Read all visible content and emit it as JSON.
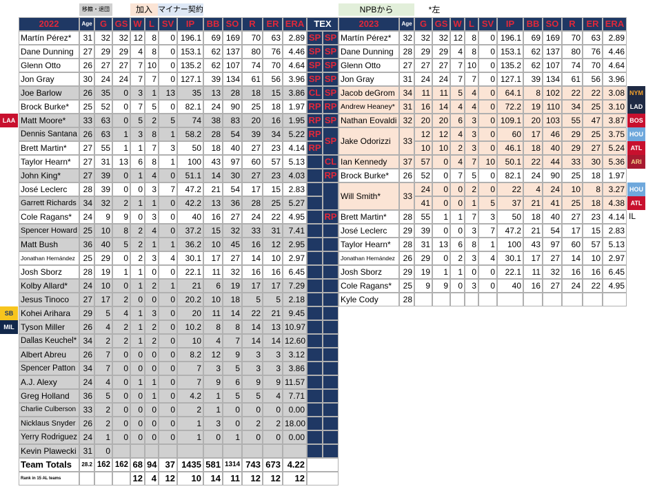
{
  "legend": {
    "departed": "移籍・退団",
    "added": "加入",
    "minor": "マイナー契約",
    "npb": "NPBから",
    "lefty": "*左"
  },
  "tex_label": "TEX",
  "left_table": {
    "title": "2022",
    "columns": [
      "Age",
      "G",
      "GS",
      "W",
      "L",
      "SV",
      "IP",
      "BB",
      "SO",
      "R",
      "ER",
      "ERA"
    ],
    "rows": [
      {
        "name": "Martín Pérez*",
        "role": "SP",
        "stats": [
          "31",
          "32",
          "32",
          "12",
          "8",
          "0",
          "196.1",
          "69",
          "169",
          "70",
          "63",
          "2.89"
        ]
      },
      {
        "name": "Dane Dunning",
        "role": "SP",
        "stats": [
          "27",
          "29",
          "29",
          "4",
          "8",
          "0",
          "153.1",
          "62",
          "137",
          "80",
          "76",
          "4.46"
        ]
      },
      {
        "name": "Glenn Otto",
        "role": "SP",
        "stats": [
          "26",
          "27",
          "27",
          "7",
          "10",
          "0",
          "135.2",
          "62",
          "107",
          "74",
          "70",
          "4.64"
        ]
      },
      {
        "name": "Jon Gray",
        "role": "SP",
        "stats": [
          "30",
          "24",
          "24",
          "7",
          "7",
          "0",
          "127.1",
          "39",
          "134",
          "61",
          "56",
          "3.96"
        ]
      },
      {
        "name": "Joe Barlow",
        "role": "CL",
        "status": "departed",
        "stats": [
          "26",
          "35",
          "0",
          "3",
          "1",
          "13",
          "35",
          "13",
          "28",
          "18",
          "15",
          "3.86"
        ]
      },
      {
        "name": "Brock Burke*",
        "role": "RP",
        "stats": [
          "25",
          "52",
          "0",
          "7",
          "5",
          "0",
          "82.1",
          "24",
          "90",
          "25",
          "18",
          "1.97"
        ]
      },
      {
        "name": "Matt Moore*",
        "role": "RP",
        "status": "departed",
        "team": "LAA",
        "stats": [
          "33",
          "63",
          "0",
          "5",
          "2",
          "5",
          "74",
          "38",
          "83",
          "20",
          "16",
          "1.95"
        ]
      },
      {
        "name": "Dennis Santana",
        "role": "RP",
        "status": "departed",
        "stats": [
          "26",
          "63",
          "1",
          "3",
          "8",
          "1",
          "58.2",
          "28",
          "54",
          "39",
          "34",
          "5.22"
        ]
      },
      {
        "name": "Brett Martin*",
        "role": "RP",
        "stats": [
          "27",
          "55",
          "1",
          "1",
          "7",
          "3",
          "50",
          "18",
          "40",
          "27",
          "23",
          "4.14"
        ]
      },
      {
        "name": "Taylor Hearn*",
        "stats": [
          "27",
          "31",
          "13",
          "6",
          "8",
          "1",
          "100",
          "43",
          "97",
          "60",
          "57",
          "5.13"
        ]
      },
      {
        "name": "John King*",
        "status": "departed",
        "stats": [
          "27",
          "39",
          "0",
          "1",
          "4",
          "0",
          "51.1",
          "14",
          "30",
          "27",
          "23",
          "4.03"
        ]
      },
      {
        "name": "José Leclerc",
        "stats": [
          "28",
          "39",
          "0",
          "0",
          "3",
          "7",
          "47.2",
          "21",
          "54",
          "17",
          "15",
          "2.83"
        ]
      },
      {
        "name": "Garrett Richards",
        "status": "departed",
        "stats": [
          "34",
          "32",
          "2",
          "1",
          "1",
          "0",
          "42.2",
          "13",
          "36",
          "28",
          "25",
          "5.27"
        ]
      },
      {
        "name": "Cole Ragans*",
        "stats": [
          "24",
          "9",
          "9",
          "0",
          "3",
          "0",
          "40",
          "16",
          "27",
          "24",
          "22",
          "4.95"
        ]
      },
      {
        "name": "Spencer Howard",
        "status": "departed",
        "stats": [
          "25",
          "10",
          "8",
          "2",
          "4",
          "0",
          "37.2",
          "15",
          "32",
          "33",
          "31",
          "7.41"
        ]
      },
      {
        "name": "Matt Bush",
        "status": "departed",
        "stats": [
          "36",
          "40",
          "5",
          "2",
          "1",
          "1",
          "36.2",
          "10",
          "45",
          "16",
          "12",
          "2.95"
        ]
      },
      {
        "name": "Jonathan Hernández",
        "stats": [
          "25",
          "29",
          "0",
          "2",
          "3",
          "4",
          "30.1",
          "17",
          "27",
          "14",
          "10",
          "2.97"
        ]
      },
      {
        "name": "Josh Sborz",
        "stats": [
          "28",
          "19",
          "1",
          "1",
          "0",
          "0",
          "22.1",
          "11",
          "32",
          "16",
          "16",
          "6.45"
        ]
      },
      {
        "name": "Kolby Allard*",
        "status": "departed",
        "stats": [
          "24",
          "10",
          "0",
          "1",
          "2",
          "1",
          "21",
          "6",
          "19",
          "17",
          "17",
          "7.29"
        ]
      },
      {
        "name": "Jesus Tinoco",
        "status": "departed",
        "stats": [
          "27",
          "17",
          "2",
          "0",
          "0",
          "0",
          "20.2",
          "10",
          "18",
          "5",
          "5",
          "2.18"
        ]
      },
      {
        "name": "Kohei Arihara",
        "status": "departed",
        "team": "SB",
        "stats": [
          "29",
          "5",
          "4",
          "1",
          "3",
          "0",
          "20",
          "11",
          "14",
          "22",
          "21",
          "9.45"
        ]
      },
      {
        "name": "Tyson Miller",
        "status": "departed",
        "team": "MIL",
        "stats": [
          "26",
          "4",
          "2",
          "1",
          "2",
          "0",
          "10.2",
          "8",
          "8",
          "14",
          "13",
          "10.97"
        ]
      },
      {
        "name": "Dallas Keuchel*",
        "status": "departed",
        "stats": [
          "34",
          "2",
          "2",
          "1",
          "2",
          "0",
          "10",
          "4",
          "7",
          "14",
          "14",
          "12.60"
        ]
      },
      {
        "name": "Albert Abreu",
        "status": "departed",
        "stats": [
          "26",
          "7",
          "0",
          "0",
          "0",
          "0",
          "8.2",
          "12",
          "9",
          "3",
          "3",
          "3.12"
        ]
      },
      {
        "name": "Spencer Patton",
        "status": "departed",
        "stats": [
          "34",
          "7",
          "0",
          "0",
          "0",
          "0",
          "7",
          "3",
          "5",
          "3",
          "3",
          "3.86"
        ]
      },
      {
        "name": "A.J. Alexy",
        "status": "departed",
        "stats": [
          "24",
          "4",
          "0",
          "1",
          "1",
          "0",
          "7",
          "9",
          "6",
          "9",
          "9",
          "11.57"
        ]
      },
      {
        "name": "Greg Holland",
        "status": "departed",
        "stats": [
          "36",
          "5",
          "0",
          "0",
          "1",
          "0",
          "4.2",
          "1",
          "5",
          "5",
          "4",
          "7.71"
        ]
      },
      {
        "name": "Charlie Culberson",
        "status": "departed",
        "stats": [
          "33",
          "2",
          "0",
          "0",
          "0",
          "0",
          "2",
          "1",
          "0",
          "0",
          "0",
          "0.00"
        ]
      },
      {
        "name": "Nicklaus Snyder",
        "status": "departed",
        "stats": [
          "26",
          "2",
          "0",
          "0",
          "0",
          "0",
          "1",
          "3",
          "0",
          "2",
          "2",
          "18.00"
        ]
      },
      {
        "name": "Yerry Rodriguez",
        "status": "departed",
        "stats": [
          "24",
          "1",
          "0",
          "0",
          "0",
          "0",
          "1",
          "0",
          "1",
          "0",
          "0",
          "0.00"
        ]
      },
      {
        "name": "Kevin Plawecki",
        "status": "departed",
        "stats": [
          "31",
          "0"
        ]
      }
    ],
    "totals": {
      "label": "Team Totals",
      "stats": [
        "28.2",
        "162",
        "162",
        "68",
        "94",
        "37",
        "1435",
        "581",
        "1314",
        "743",
        "673",
        "4.22"
      ]
    },
    "rank": {
      "label": "Rank in 15 AL teams",
      "stats": [
        "12",
        "4",
        "12",
        "10",
        "14",
        "11",
        "12",
        "12",
        "12"
      ]
    }
  },
  "right_table": {
    "title": "2023",
    "columns": [
      "Age",
      "G",
      "GS",
      "W",
      "L",
      "SV",
      "IP",
      "BB",
      "SO",
      "R",
      "ER",
      "ERA"
    ],
    "rows": [
      {
        "name": "Martín Pérez*",
        "role": "SP",
        "age": "32",
        "splits": [
          {
            "stats": [
              "32",
              "32",
              "12",
              "8",
              "0",
              "196.1",
              "69",
              "169",
              "70",
              "63",
              "2.89"
            ]
          }
        ]
      },
      {
        "name": "Dane Dunning",
        "role": "SP",
        "age": "28",
        "splits": [
          {
            "stats": [
              "29",
              "29",
              "4",
              "8",
              "0",
              "153.1",
              "62",
              "137",
              "80",
              "76",
              "4.46"
            ]
          }
        ]
      },
      {
        "name": "Glenn Otto",
        "role": "SP",
        "age": "27",
        "splits": [
          {
            "stats": [
              "27",
              "27",
              "7",
              "10",
              "0",
              "135.2",
              "62",
              "107",
              "74",
              "70",
              "4.64"
            ]
          }
        ]
      },
      {
        "name": "Jon Gray",
        "role": "SP",
        "age": "31",
        "splits": [
          {
            "stats": [
              "24",
              "24",
              "7",
              "7",
              "0",
              "127.1",
              "39",
              "134",
              "61",
              "56",
              "3.96"
            ]
          }
        ]
      },
      {
        "name": "Jacob deGrom",
        "role": "SP",
        "status": "added",
        "age": "34",
        "splits": [
          {
            "team": "NYM",
            "stats": [
              "11",
              "11",
              "5",
              "4",
              "0",
              "64.1",
              "8",
              "102",
              "22",
              "22",
              "3.08"
            ]
          }
        ]
      },
      {
        "name": "Andrew Heaney*",
        "role": "RP",
        "status": "added",
        "age": "31",
        "splits": [
          {
            "team": "LAD",
            "stats": [
              "16",
              "14",
              "4",
              "4",
              "0",
              "72.2",
              "19",
              "110",
              "34",
              "25",
              "3.10"
            ]
          }
        ]
      },
      {
        "name": "Nathan Eovaldi",
        "role": "SP",
        "status": "added",
        "age": "32",
        "splits": [
          {
            "team": "BOS",
            "stats": [
              "20",
              "20",
              "6",
              "3",
              "0",
              "109.1",
              "20",
              "103",
              "55",
              "47",
              "3.87"
            ]
          }
        ]
      },
      {
        "name": "Jake Odorizzi",
        "role": "SP",
        "status": "added",
        "age": "33",
        "splits": [
          {
            "team": "HOU",
            "stats": [
              "12",
              "12",
              "4",
              "3",
              "0",
              "60",
              "17",
              "46",
              "29",
              "25",
              "3.75"
            ]
          },
          {
            "team": "ATL",
            "stats": [
              "10",
              "10",
              "2",
              "3",
              "0",
              "46.1",
              "18",
              "40",
              "29",
              "27",
              "5.24"
            ]
          }
        ]
      },
      {
        "name": "Ian Kennedy",
        "role": "CL",
        "status": "added",
        "age": "37",
        "splits": [
          {
            "team": "ARI",
            "stats": [
              "57",
              "0",
              "4",
              "7",
              "10",
              "50.1",
              "22",
              "44",
              "33",
              "30",
              "5.36"
            ]
          }
        ]
      },
      {
        "name": "Brock Burke*",
        "role": "RP",
        "age": "26",
        "splits": [
          {
            "stats": [
              "52",
              "0",
              "7",
              "5",
              "0",
              "82.1",
              "24",
              "90",
              "25",
              "18",
              "1.97"
            ]
          }
        ]
      },
      {
        "name": "Will Smith*",
        "status": "added",
        "age": "33",
        "splits": [
          {
            "team": "HOU",
            "stats": [
              "24",
              "0",
              "0",
              "2",
              "0",
              "22",
              "4",
              "24",
              "10",
              "8",
              "3.27"
            ]
          },
          {
            "team": "ATL",
            "stats": [
              "41",
              "0",
              "0",
              "1",
              "5",
              "37",
              "21",
              "41",
              "25",
              "18",
              "4.38"
            ]
          }
        ]
      },
      {
        "name": "Brett Martin*",
        "role": "RP",
        "age": "28",
        "note": "IL",
        "splits": [
          {
            "stats": [
              "55",
              "1",
              "1",
              "7",
              "3",
              "50",
              "18",
              "40",
              "27",
              "23",
              "4.14"
            ]
          }
        ]
      },
      {
        "name": "José Leclerc",
        "age": "29",
        "splits": [
          {
            "stats": [
              "39",
              "0",
              "0",
              "3",
              "7",
              "47.2",
              "21",
              "54",
              "17",
              "15",
              "2.83"
            ]
          }
        ]
      },
      {
        "name": "Taylor Hearn*",
        "age": "28",
        "splits": [
          {
            "stats": [
              "31",
              "13",
              "6",
              "8",
              "1",
              "100",
              "43",
              "97",
              "60",
              "57",
              "5.13"
            ]
          }
        ]
      },
      {
        "name": "Jonathan Hernández",
        "age": "26",
        "splits": [
          {
            "stats": [
              "29",
              "0",
              "2",
              "3",
              "4",
              "30.1",
              "17",
              "27",
              "14",
              "10",
              "2.97"
            ]
          }
        ]
      },
      {
        "name": "Josh Sborz",
        "age": "29",
        "splits": [
          {
            "stats": [
              "19",
              "1",
              "1",
              "0",
              "0",
              "22.1",
              "11",
              "32",
              "16",
              "16",
              "6.45"
            ]
          }
        ]
      },
      {
        "name": "Cole Ragans*",
        "age": "25",
        "splits": [
          {
            "stats": [
              "9",
              "9",
              "0",
              "3",
              "0",
              "40",
              "16",
              "27",
              "24",
              "22",
              "4.95"
            ]
          }
        ]
      },
      {
        "name": "Kyle Cody",
        "age": "28",
        "splits": [
          {
            "stats": []
          }
        ]
      }
    ]
  }
}
